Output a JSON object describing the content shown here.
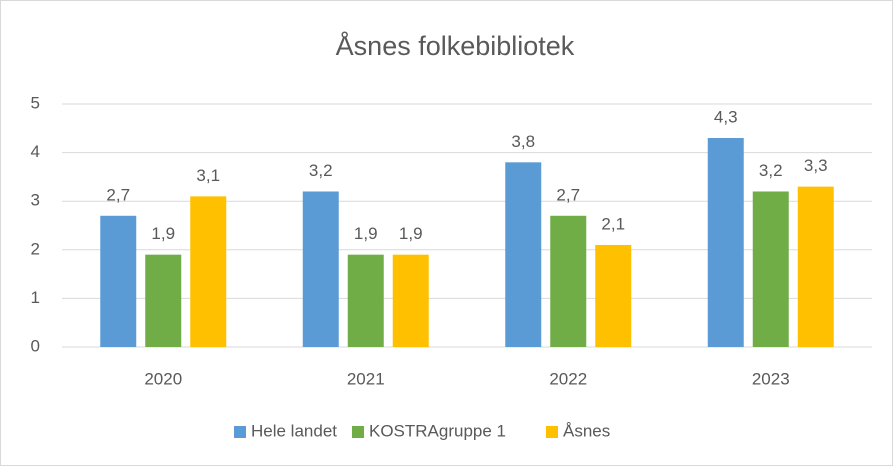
{
  "chart_data": {
    "type": "bar",
    "title": "Åsnes folkebibliotek",
    "categories": [
      "2020",
      "2021",
      "2022",
      "2023"
    ],
    "series": [
      {
        "name": "Hele landet",
        "color": "#5b9bd5",
        "values": [
          2.7,
          3.2,
          3.8,
          4.3
        ],
        "value_labels": [
          "2,7",
          "3,2",
          "3,8",
          "4,3"
        ]
      },
      {
        "name": "KOSTRAgruppe 1",
        "color": "#70ad47",
        "values": [
          1.9,
          1.9,
          2.7,
          3.2
        ],
        "value_labels": [
          "1,9",
          "1,9",
          "2,7",
          "3,2"
        ]
      },
      {
        "name": "Åsnes",
        "color": "#ffc000",
        "values": [
          3.1,
          1.9,
          2.1,
          3.3
        ],
        "value_labels": [
          "3,1",
          "1,9",
          "2,1",
          "3,3"
        ]
      }
    ],
    "ylim": [
      0,
      5
    ],
    "yticks": [
      0,
      1,
      2,
      3,
      4,
      5
    ],
    "grid": true,
    "legend": "bottom"
  }
}
